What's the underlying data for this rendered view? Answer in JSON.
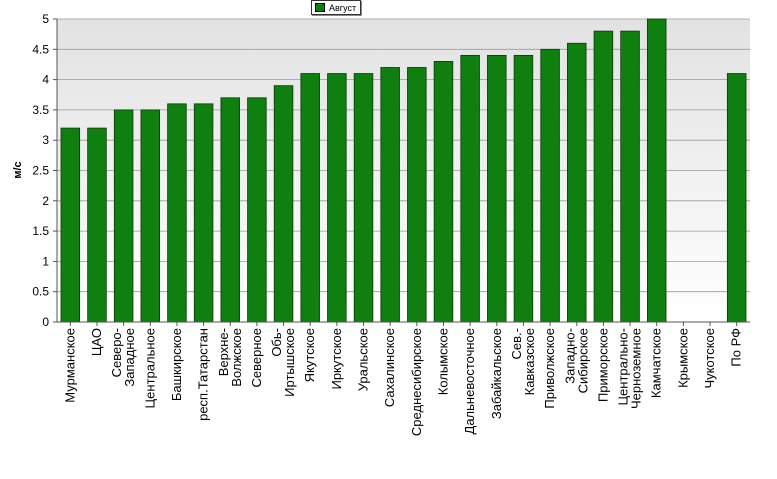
{
  "chart_data": {
    "type": "bar",
    "title": "",
    "xlabel": "",
    "ylabel": "м/с",
    "ylim": [
      0,
      5
    ],
    "yticks": [
      "0",
      "0.5",
      "1",
      "1.5",
      "2",
      "2.5",
      "3",
      "3.5",
      "4",
      "4.5",
      "5"
    ],
    "grid": true,
    "legend_position": "top-center",
    "bar_color": "#0f7f0f",
    "categories": [
      "Мурманское",
      "ЦАО",
      "Северо-\nЗападное",
      "Центральное",
      "Башкирское",
      "респ.Татарстан",
      "Верхне-\nВолжское",
      "Северное",
      "Обь-\nИртышское",
      "Якутское",
      "Иркутское",
      "Уральское",
      "Сахалинское",
      "Среднесибирское",
      "Колымское",
      "Дальневосточное",
      "Забайкальское",
      "Сев.-\nКавказское",
      "Приволжское",
      "Западно-\nСибирское",
      "Приморское",
      "Центрально-\nЧерноземное",
      "Камчатское",
      "Крымское",
      "Чукотское",
      "По РФ"
    ],
    "series": [
      {
        "name": "Август",
        "values": [
          3.2,
          3.2,
          3.5,
          3.5,
          3.6,
          3.6,
          3.7,
          3.7,
          3.9,
          4.1,
          4.1,
          4.1,
          4.2,
          4.2,
          4.3,
          4.4,
          4.4,
          4.4,
          4.5,
          4.6,
          4.8,
          4.8,
          5.0,
          null,
          null,
          4.1
        ]
      }
    ]
  }
}
